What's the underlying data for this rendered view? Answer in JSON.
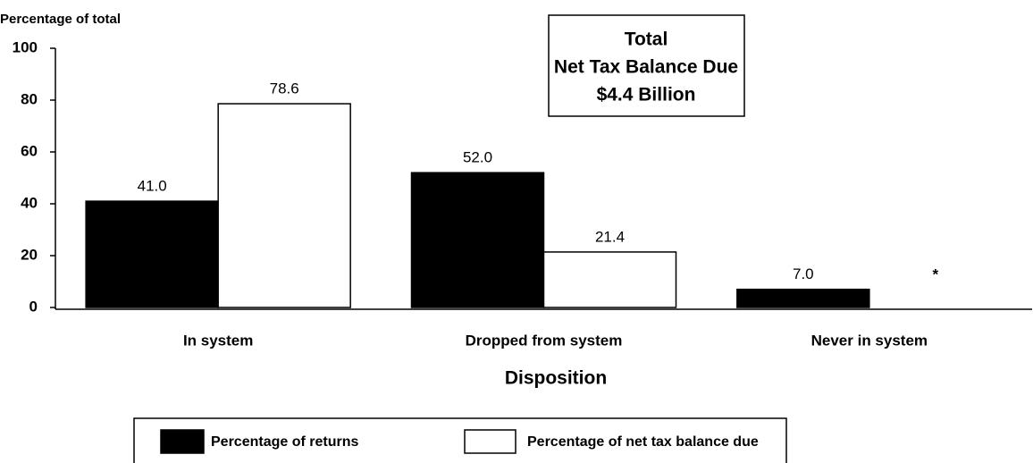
{
  "chart_data": {
    "type": "bar",
    "y_axis_label": "Percentage of total",
    "x_axis_label": "Disposition",
    "annotation": [
      "Total",
      "Net Tax Balance Due",
      "$4.4 Billion"
    ],
    "categories": [
      "In system",
      "Dropped from system",
      "Never in system"
    ],
    "series": [
      {
        "name": "Percentage of returns",
        "color": "#000000",
        "values": [
          41.0,
          52.0,
          7.0
        ],
        "value_labels": [
          "41.0",
          "52.0",
          "7.0"
        ]
      },
      {
        "name": "Percentage of net tax balance due",
        "color": "#ffffff",
        "values": [
          78.6,
          21.4,
          null
        ],
        "value_labels": [
          "78.6",
          "21.4",
          "*"
        ]
      }
    ],
    "ylim": [
      0,
      100
    ],
    "yticks": [
      0,
      20,
      40,
      60,
      80,
      100
    ]
  }
}
